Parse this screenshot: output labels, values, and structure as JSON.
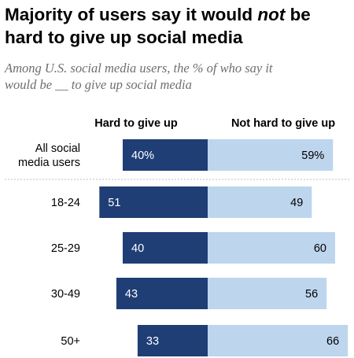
{
  "title_line1_a": "Majority of users say it would ",
  "title_line1_em": "not",
  "title_line1_b": " be",
  "title_line2": "hard to give up social media",
  "subtitle_line1": "Among U.S. social media users, the % of who say it",
  "subtitle_line2": "would be __ to give up social media",
  "chart_data": {
    "type": "bar",
    "orientation": "horizontal-diverging",
    "categories": [
      [
        "All social",
        "media users"
      ],
      [
        "18-24"
      ],
      [
        "25-29"
      ],
      [
        "30-49"
      ],
      [
        "50+"
      ]
    ],
    "series": [
      {
        "name": "Hard to give up",
        "values": [
          40,
          51,
          40,
          43,
          33
        ],
        "labels": [
          "40%",
          "51",
          "40",
          "43",
          "33"
        ],
        "color": "#1f3e75"
      },
      {
        "name": "Not hard to give up",
        "values": [
          59,
          49,
          60,
          56,
          66
        ],
        "labels": [
          "59%",
          "49",
          "60",
          "56",
          "66"
        ],
        "color": "#bed5ee"
      }
    ]
  }
}
